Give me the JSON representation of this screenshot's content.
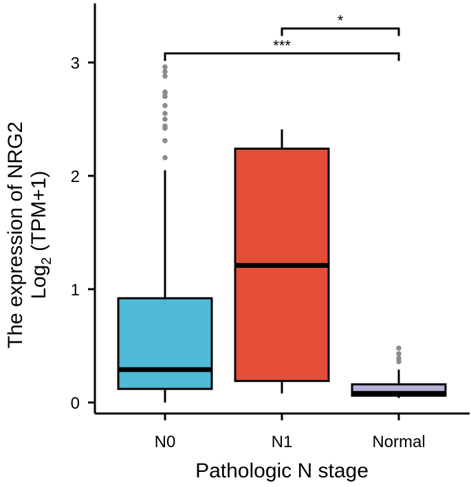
{
  "chart_data": {
    "type": "boxplot",
    "xlabel": "Pathologic N stage",
    "ylabel_line1": "The expression of NRG2",
    "ylabel_line2_prefix": "Log",
    "ylabel_line2_sub": "2",
    "ylabel_line2_suffix": " (TPM+1)",
    "ylim": [
      -0.05,
      3.5
    ],
    "yticks": [
      0,
      1,
      2,
      3
    ],
    "ytick_labels": [
      "0",
      "1",
      "2",
      "3"
    ],
    "categories": [
      "N0",
      "N1",
      "Normal"
    ],
    "boxes": [
      {
        "name": "N0",
        "color": "#4ebad6",
        "whisker_low": 0.0,
        "q1": 0.12,
        "median": 0.29,
        "q3": 0.92,
        "whisker_high": 2.05,
        "outliers": [
          2.16,
          2.31,
          2.42,
          2.44,
          2.5,
          2.55,
          2.62,
          2.7,
          2.73,
          2.74,
          2.88,
          2.92,
          2.96
        ]
      },
      {
        "name": "N1",
        "color": "#e54d37",
        "whisker_low": 0.08,
        "q1": 0.19,
        "median": 1.21,
        "q3": 2.24,
        "whisker_high": 2.41,
        "outliers": []
      },
      {
        "name": "Normal",
        "color": "#b4b0d6",
        "whisker_low": 0.04,
        "q1": 0.06,
        "median": 0.08,
        "q3": 0.16,
        "whisker_high": 0.29,
        "outliers": [
          0.36,
          0.39,
          0.43,
          0.48
        ]
      }
    ],
    "significance": [
      {
        "from": "N1",
        "to": "Normal",
        "label": "*",
        "y": 3.3
      },
      {
        "from": "N0",
        "to": "Normal",
        "label": "***",
        "y": 3.08
      }
    ]
  }
}
